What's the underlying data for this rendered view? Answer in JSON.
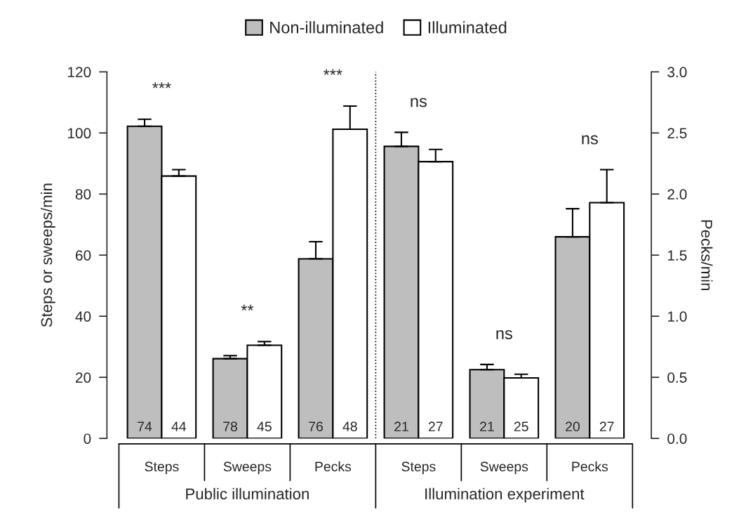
{
  "chart_data": {
    "type": "bar",
    "categories": [
      "Steps",
      "Sweeps",
      "Pecks",
      "Steps",
      "Sweeps",
      "Pecks"
    ],
    "series": [
      {
        "name": "Non-illuminated",
        "color": "#bebebe",
        "values": [
          102.2,
          26.1,
          null,
          95.6,
          22.5,
          null
        ],
        "errors": [
          [
            102.2,
            104.5
          ],
          [
            26.1,
            27.1
          ],
          null,
          [
            95.6,
            100.2
          ],
          [
            22.5,
            24.2
          ],
          null
        ]
      },
      {
        "name": "Illuminated",
        "color": "#ffffff",
        "values": [
          85.9,
          30.5,
          null,
          90.6,
          19.8,
          null
        ],
        "errors": [
          [
            85.9,
            88.0
          ],
          [
            30.5,
            31.7
          ],
          null,
          [
            90.6,
            94.6
          ],
          [
            19.8,
            21.0
          ],
          null
        ]
      },
      {
        "color": "#bebebe",
        "axis": "y2",
        "values": [
          null,
          null,
          1.47,
          null,
          null,
          1.65
        ],
        "errors": [
          null,
          null,
          [
            1.47,
            1.61
          ],
          null,
          null,
          [
            1.65,
            1.88
          ]
        ]
      },
      {
        "color": "#ffffff",
        "axis": "y2",
        "values": [
          null,
          null,
          2.53,
          null,
          null,
          1.93
        ],
        "errors": [
          null,
          null,
          [
            2.53,
            2.72
          ],
          null,
          null,
          [
            1.93,
            2.2
          ]
        ]
      }
    ],
    "ylabel": "Steps or sweeps/min",
    "y2label": "Pecks/min",
    "ylim": [
      0,
      120
    ],
    "yticks": [
      0,
      20,
      40,
      60,
      80,
      100,
      120
    ],
    "y2lim": [
      0,
      3.0
    ],
    "y2ticks": [
      {
        "value": 0,
        "label": "0.0"
      },
      {
        "value": 0.5,
        "label": "0.5"
      },
      {
        "value": 1.0,
        "label": "1.0"
      },
      {
        "value": 1.5,
        "label": "1.5"
      },
      {
        "value": 2.0,
        "label": "2.0"
      },
      {
        "value": 2.5,
        "label": "2.5"
      },
      {
        "value": 3.0,
        "label": "3.0"
      }
    ],
    "annotations": [
      "Public illumination",
      "Illumination experiment",
      "***",
      "**",
      "***",
      "ns",
      "ns",
      "ns",
      "74",
      "44",
      "78",
      "45",
      "76",
      "48",
      "21",
      "27",
      "21",
      "25",
      "20",
      "27"
    ],
    "legend": "top",
    "grid": false
  }
}
